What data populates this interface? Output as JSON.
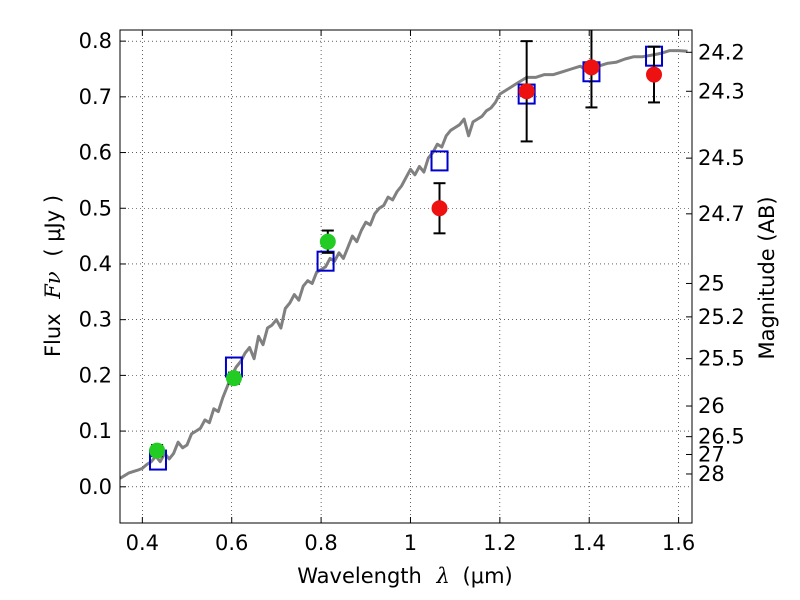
{
  "chart_data": {
    "type": "scatter",
    "x_axis": {
      "label_prefix": "Wavelength",
      "label_symbol": "λ",
      "label_unit": "(μm)",
      "range": [
        0.35,
        1.63
      ],
      "ticks": [
        0.4,
        0.6,
        0.8,
        1.0,
        1.2,
        1.4,
        1.6
      ],
      "tick_labels": [
        "0.4",
        "0.6",
        "0.8",
        "1",
        "1.2",
        "1.4",
        "1.6"
      ]
    },
    "y_axis": {
      "label_prefix": "Flux",
      "label_symbol": "Fν",
      "label_unit": "( μJy )",
      "range": [
        -0.065,
        0.82
      ],
      "ticks": [
        0.0,
        0.1,
        0.2,
        0.3,
        0.4,
        0.5,
        0.6,
        0.7,
        0.8
      ],
      "tick_labels": [
        "0.0",
        "0.1",
        "0.2",
        "0.3",
        "0.4",
        "0.5",
        "0.6",
        "0.7",
        "0.8"
      ]
    },
    "y2_axis": {
      "label": "Magnitude (AB)",
      "ticks": [
        {
          "label": "24.2",
          "flux": 0.78
        },
        {
          "label": "24.3",
          "flux": 0.71
        },
        {
          "label": "24.5",
          "flux": 0.59
        },
        {
          "label": "24.7",
          "flux": 0.49
        },
        {
          "label": "25",
          "flux": 0.365
        },
        {
          "label": "25.2",
          "flux": 0.305
        },
        {
          "label": "25.5",
          "flux": 0.23
        },
        {
          "label": "26",
          "flux": 0.145
        },
        {
          "label": "26.5",
          "flux": 0.09
        },
        {
          "label": "27",
          "flux": 0.058
        },
        {
          "label": "28",
          "flux": 0.023
        }
      ]
    },
    "grid": true,
    "series": [
      {
        "kind": "line",
        "color": "#808080",
        "x": [
          0.35,
          0.37,
          0.39,
          0.4,
          0.41,
          0.42,
          0.43,
          0.44,
          0.45,
          0.46,
          0.47,
          0.48,
          0.49,
          0.5,
          0.51,
          0.52,
          0.53,
          0.54,
          0.55,
          0.56,
          0.57,
          0.58,
          0.59,
          0.6,
          0.61,
          0.62,
          0.63,
          0.64,
          0.65,
          0.66,
          0.67,
          0.68,
          0.69,
          0.7,
          0.71,
          0.72,
          0.73,
          0.74,
          0.75,
          0.76,
          0.77,
          0.78,
          0.79,
          0.8,
          0.81,
          0.82,
          0.83,
          0.84,
          0.85,
          0.86,
          0.87,
          0.88,
          0.89,
          0.9,
          0.91,
          0.92,
          0.93,
          0.94,
          0.95,
          0.96,
          0.97,
          0.98,
          0.99,
          1.0,
          1.01,
          1.02,
          1.03,
          1.04,
          1.05,
          1.06,
          1.07,
          1.08,
          1.09,
          1.1,
          1.11,
          1.12,
          1.13,
          1.14,
          1.15,
          1.16,
          1.17,
          1.18,
          1.19,
          1.2,
          1.22,
          1.24,
          1.26,
          1.28,
          1.3,
          1.32,
          1.34,
          1.36,
          1.38,
          1.4,
          1.42,
          1.44,
          1.46,
          1.48,
          1.5,
          1.52,
          1.54,
          1.56,
          1.58,
          1.6,
          1.62
        ],
        "y": [
          0.015,
          0.025,
          0.03,
          0.033,
          0.04,
          0.045,
          0.055,
          0.045,
          0.06,
          0.05,
          0.06,
          0.08,
          0.07,
          0.075,
          0.095,
          0.1,
          0.105,
          0.12,
          0.115,
          0.14,
          0.135,
          0.16,
          0.18,
          0.2,
          0.215,
          0.225,
          0.24,
          0.25,
          0.23,
          0.27,
          0.255,
          0.285,
          0.29,
          0.3,
          0.285,
          0.32,
          0.33,
          0.345,
          0.335,
          0.36,
          0.37,
          0.365,
          0.385,
          0.39,
          0.395,
          0.41,
          0.405,
          0.42,
          0.41,
          0.43,
          0.45,
          0.44,
          0.46,
          0.475,
          0.47,
          0.49,
          0.5,
          0.505,
          0.52,
          0.515,
          0.53,
          0.54,
          0.555,
          0.57,
          0.56,
          0.575,
          0.565,
          0.59,
          0.6,
          0.615,
          0.61,
          0.63,
          0.64,
          0.645,
          0.65,
          0.66,
          0.63,
          0.655,
          0.66,
          0.665,
          0.675,
          0.68,
          0.69,
          0.705,
          0.715,
          0.725,
          0.735,
          0.735,
          0.74,
          0.74,
          0.745,
          0.75,
          0.755,
          0.745,
          0.755,
          0.76,
          0.762,
          0.768,
          0.772,
          0.772,
          0.775,
          0.778,
          0.783,
          0.783,
          0.782
        ]
      },
      {
        "kind": "square",
        "color": "#0000cc",
        "x": [
          0.435,
          0.605,
          0.81,
          1.065,
          1.26,
          1.405,
          1.545
        ],
        "y": [
          0.048,
          0.215,
          0.405,
          0.585,
          0.705,
          0.745,
          0.773
        ]
      },
      {
        "kind": "circle",
        "color": "#22cc22",
        "x": [
          0.433,
          0.605,
          0.815
        ],
        "y": [
          0.065,
          0.195,
          0.44
        ],
        "err": [
          0.01,
          0.01,
          0.02
        ]
      },
      {
        "kind": "circle",
        "color": "#ee1111",
        "x": [
          1.065,
          1.26,
          1.405,
          1.545
        ],
        "y": [
          0.5,
          0.71,
          0.753,
          0.74
        ],
        "err": [
          0.045,
          0.09,
          0.072,
          0.05
        ]
      }
    ]
  }
}
